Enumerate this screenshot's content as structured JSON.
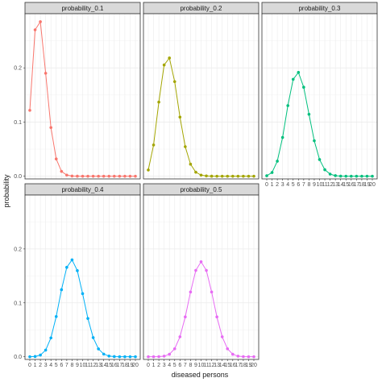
{
  "chart_data": {
    "type": "line",
    "xlabel": "diseased persons",
    "ylabel": "probability",
    "x": [
      0,
      1,
      2,
      3,
      4,
      5,
      6,
      7,
      8,
      9,
      10,
      11,
      12,
      13,
      14,
      15,
      16,
      17,
      18,
      19,
      20
    ],
    "x_tick_labels": [
      "0",
      "1",
      "2",
      "3",
      "4",
      "5",
      "6",
      "7",
      "8",
      "9",
      "10",
      "11",
      "12",
      "13",
      "14",
      "15",
      "16",
      "17",
      "18",
      "19",
      "20"
    ],
    "ylim": [
      -0.005,
      0.3
    ],
    "y_ticks": [
      0.0,
      0.1,
      0.2
    ],
    "y_tick_labels": [
      "0.0",
      "0.1",
      "0.2"
    ],
    "grid": true,
    "layout": "facet grid 3 columns x 2 rows",
    "facets": [
      {
        "name": "probability_0.1",
        "color": "#F8766D",
        "values": [
          0.1216,
          0.2702,
          0.2852,
          0.1901,
          0.0898,
          0.0319,
          0.0089,
          0.002,
          0.0004,
          0.0001,
          0,
          0,
          0,
          0,
          0,
          0,
          0,
          0,
          0,
          0,
          0
        ]
      },
      {
        "name": "probability_0.2",
        "color": "#A3A500",
        "values": [
          0.0115,
          0.0576,
          0.1369,
          0.2054,
          0.2182,
          0.1746,
          0.1091,
          0.0545,
          0.0222,
          0.0074,
          0.002,
          0.0005,
          0.0001,
          0,
          0,
          0,
          0,
          0,
          0,
          0,
          0
        ]
      },
      {
        "name": "probability_0.3",
        "color": "#00BF7D",
        "values": [
          0.0008,
          0.0068,
          0.0278,
          0.0716,
          0.1304,
          0.1789,
          0.1916,
          0.1643,
          0.1144,
          0.0654,
          0.0308,
          0.012,
          0.0039,
          0.001,
          0.0002,
          0,
          0,
          0,
          0,
          0,
          0
        ]
      },
      {
        "name": "probability_0.4",
        "color": "#00B0F6",
        "values": [
          0.0,
          0.0005,
          0.0031,
          0.0123,
          0.035,
          0.0746,
          0.1244,
          0.1659,
          0.1797,
          0.1597,
          0.1171,
          0.071,
          0.0355,
          0.0146,
          0.0049,
          0.0013,
          0.0003,
          0,
          0,
          0,
          0
        ]
      },
      {
        "name": "probability_0.5",
        "color": "#E76BF3",
        "values": [
          0.0,
          0.0,
          0.0002,
          0.0011,
          0.0046,
          0.0148,
          0.037,
          0.0739,
          0.1201,
          0.1602,
          0.1762,
          0.1602,
          0.1201,
          0.0739,
          0.037,
          0.0148,
          0.0046,
          0.0011,
          0.0002,
          0,
          0
        ]
      }
    ]
  }
}
